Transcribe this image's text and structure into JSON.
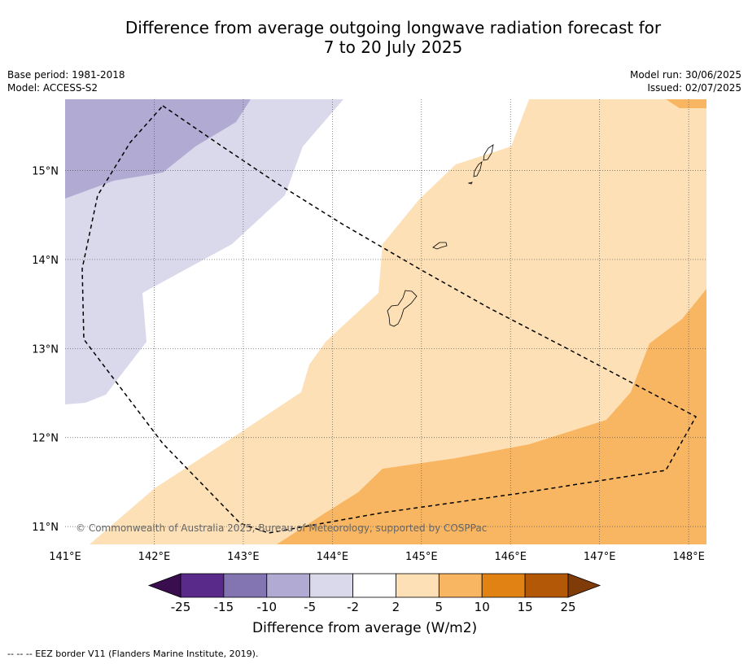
{
  "title": {
    "line1": "Difference from average outgoing longwave radiation forecast for",
    "line2": "7 to 20 July 2025"
  },
  "meta": {
    "base_period": "Base period: 1981-2018",
    "model": "Model: ACCESS-S2",
    "model_run": "Model run: 30/06/2025",
    "issued": "Issued: 02/07/2025"
  },
  "map": {
    "lon_range": [
      141.0,
      148.2
    ],
    "lat_range": [
      10.8,
      15.8
    ],
    "lon_ticks": [
      "141°E",
      "142°E",
      "143°E",
      "144°E",
      "145°E",
      "146°E",
      "147°E",
      "148°E"
    ],
    "lat_ticks": [
      "11°N",
      "12°N",
      "13°N",
      "14°N",
      "15°N"
    ],
    "copyright": "© Commonwealth of Australia 2025, Bureau of Meteorology, supported by COSPPac"
  },
  "colorbar": {
    "title": "Difference from average (W/m2)",
    "labels": [
      "-25",
      "-15",
      "-10",
      "-5",
      "-2",
      "2",
      "5",
      "10",
      "15",
      "25"
    ],
    "colors": [
      "#3a0d4f",
      "#5a2a8a",
      "#8374b2",
      "#b1aad3",
      "#d9d9eb",
      "#ffffff",
      "#fde0b6",
      "#f9b662",
      "#e08214",
      "#b35806",
      "#7f3b08"
    ]
  },
  "footnote": "--  --  -- EEZ border V11 (Flanders Marine Institute, 2019)."
}
